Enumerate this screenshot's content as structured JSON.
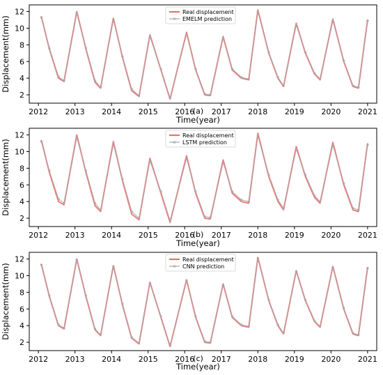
{
  "chart_data": [
    {
      "type": "line",
      "panel_label": "(a)",
      "xlabel": "Time(year)",
      "ylabel": "Displacement(mm)",
      "xlim": [
        2011.75,
        2021.25
      ],
      "ylim": [
        1.0,
        12.8
      ],
      "x_ticks": [
        2012,
        2013,
        2014,
        2015,
        2016,
        2017,
        2018,
        2019,
        2020,
        2021
      ],
      "y_ticks": [
        2,
        4,
        6,
        8,
        10,
        12
      ],
      "legend_position": "top-center",
      "series": [
        {
          "name": "Real displacement",
          "color": "#f26b6b",
          "x": [
            2012.08,
            2012.3,
            2012.55,
            2012.7,
            2013.05,
            2013.3,
            2013.55,
            2013.7,
            2014.05,
            2014.3,
            2014.55,
            2014.75,
            2015.05,
            2015.35,
            2015.6,
            2016.05,
            2016.3,
            2016.55,
            2016.7,
            2017.05,
            2017.3,
            2017.55,
            2017.75,
            2018.0,
            2018.3,
            2018.55,
            2018.7,
            2019.05,
            2019.3,
            2019.55,
            2019.7,
            2020.05,
            2020.35,
            2020.6,
            2020.75,
            2021.0
          ],
          "y": [
            11.4,
            7.5,
            4.0,
            3.6,
            12.0,
            7.5,
            3.5,
            2.8,
            11.2,
            6.5,
            2.5,
            1.8,
            9.2,
            5.0,
            1.5,
            9.5,
            5.0,
            2.0,
            1.9,
            9.0,
            5.0,
            4.0,
            3.8,
            12.2,
            7.0,
            4.0,
            3.0,
            10.6,
            7.0,
            4.5,
            3.8,
            11.1,
            6.0,
            3.0,
            2.8,
            11.0
          ]
        },
        {
          "name": "EMELM prediction",
          "color": "#a8a8a8",
          "x": [
            2012.08,
            2012.3,
            2012.55,
            2012.7,
            2013.05,
            2013.3,
            2013.55,
            2013.7,
            2014.05,
            2014.3,
            2014.55,
            2014.75,
            2015.05,
            2015.35,
            2015.6,
            2016.05,
            2016.3,
            2016.55,
            2016.7,
            2017.05,
            2017.3,
            2017.55,
            2017.75,
            2018.0,
            2018.3,
            2018.55,
            2018.7,
            2019.05,
            2019.3,
            2019.55,
            2019.7,
            2020.05,
            2020.35,
            2020.6,
            2020.75,
            2021.0
          ],
          "y": [
            11.3,
            7.6,
            4.2,
            3.7,
            11.8,
            7.6,
            3.7,
            2.9,
            11.0,
            6.6,
            2.7,
            1.9,
            9.0,
            5.1,
            1.6,
            9.3,
            5.1,
            2.1,
            2.0,
            8.8,
            5.1,
            4.1,
            3.9,
            12.0,
            7.1,
            4.1,
            3.1,
            10.4,
            7.1,
            4.6,
            3.9,
            10.9,
            6.1,
            3.1,
            2.9,
            10.9
          ]
        }
      ]
    },
    {
      "type": "line",
      "panel_label": "(b)",
      "xlabel": "Time(year)",
      "ylabel": "Displacement(mm)",
      "xlim": [
        2011.75,
        2021.25
      ],
      "ylim": [
        1.0,
        12.8
      ],
      "x_ticks": [
        2012,
        2013,
        2014,
        2015,
        2016,
        2017,
        2018,
        2019,
        2020,
        2021
      ],
      "y_ticks": [
        2,
        4,
        6,
        8,
        10,
        12
      ],
      "legend_position": "top-center",
      "series": [
        {
          "name": "Real displacement",
          "color": "#f26b6b",
          "x": [
            2012.08,
            2012.3,
            2012.55,
            2012.7,
            2013.05,
            2013.3,
            2013.55,
            2013.7,
            2014.05,
            2014.3,
            2014.55,
            2014.75,
            2015.05,
            2015.35,
            2015.6,
            2016.05,
            2016.3,
            2016.55,
            2016.7,
            2017.05,
            2017.3,
            2017.55,
            2017.75,
            2018.0,
            2018.3,
            2018.55,
            2018.7,
            2019.05,
            2019.3,
            2019.55,
            2019.7,
            2020.05,
            2020.35,
            2020.6,
            2020.75,
            2021.0
          ],
          "y": [
            11.4,
            7.5,
            4.0,
            3.6,
            12.0,
            7.5,
            3.5,
            2.8,
            11.2,
            6.5,
            2.5,
            1.8,
            9.2,
            5.0,
            1.5,
            9.5,
            5.0,
            2.0,
            1.9,
            9.0,
            5.0,
            4.0,
            3.8,
            12.2,
            7.0,
            4.0,
            3.0,
            10.6,
            7.0,
            4.5,
            3.8,
            11.1,
            6.0,
            3.0,
            2.8,
            11.0
          ]
        },
        {
          "name": "LSTM prediction",
          "color": "#a8a8a8",
          "x": [
            2012.08,
            2012.3,
            2012.55,
            2012.7,
            2013.05,
            2013.3,
            2013.55,
            2013.7,
            2014.05,
            2014.3,
            2014.55,
            2014.75,
            2015.05,
            2015.35,
            2015.6,
            2016.05,
            2016.3,
            2016.55,
            2016.7,
            2017.05,
            2017.3,
            2017.55,
            2017.75,
            2018.0,
            2018.3,
            2018.55,
            2018.7,
            2019.05,
            2019.3,
            2019.55,
            2019.7,
            2020.05,
            2020.35,
            2020.6,
            2020.75,
            2021.0
          ],
          "y": [
            11.2,
            7.7,
            4.3,
            3.8,
            11.7,
            7.7,
            3.8,
            3.0,
            10.9,
            6.7,
            2.8,
            2.0,
            8.9,
            5.2,
            1.7,
            9.2,
            5.2,
            2.2,
            2.1,
            8.7,
            5.2,
            4.2,
            4.0,
            11.9,
            7.2,
            4.2,
            3.2,
            10.3,
            7.2,
            4.7,
            4.0,
            10.8,
            6.2,
            3.2,
            3.0,
            10.8
          ]
        }
      ]
    },
    {
      "type": "line",
      "panel_label": "(c)",
      "xlabel": "Time(year)",
      "ylabel": "Displacement(mm)",
      "xlim": [
        2011.75,
        2021.25
      ],
      "ylim": [
        1.0,
        12.8
      ],
      "x_ticks": [
        2012,
        2013,
        2014,
        2015,
        2016,
        2017,
        2018,
        2019,
        2020,
        2021
      ],
      "y_ticks": [
        2,
        4,
        6,
        8,
        10,
        12
      ],
      "legend_position": "top-center",
      "series": [
        {
          "name": "Real displacement",
          "color": "#f26b6b",
          "x": [
            2012.08,
            2012.3,
            2012.55,
            2012.7,
            2013.05,
            2013.3,
            2013.55,
            2013.7,
            2014.05,
            2014.3,
            2014.55,
            2014.75,
            2015.05,
            2015.35,
            2015.6,
            2016.05,
            2016.3,
            2016.55,
            2016.7,
            2017.05,
            2017.3,
            2017.55,
            2017.75,
            2018.0,
            2018.3,
            2018.55,
            2018.7,
            2019.05,
            2019.3,
            2019.55,
            2019.7,
            2020.05,
            2020.35,
            2020.6,
            2020.75,
            2021.0
          ],
          "y": [
            11.4,
            7.5,
            4.0,
            3.6,
            12.0,
            7.5,
            3.5,
            2.8,
            11.2,
            6.5,
            2.5,
            1.8,
            9.2,
            5.0,
            1.5,
            9.5,
            5.0,
            2.0,
            1.9,
            9.0,
            5.0,
            4.0,
            3.8,
            12.2,
            7.0,
            4.0,
            3.0,
            10.6,
            7.0,
            4.5,
            3.8,
            11.1,
            6.0,
            3.0,
            2.8,
            11.0
          ]
        },
        {
          "name": "CNN prediction",
          "color": "#a8a8a8",
          "x": [
            2012.08,
            2012.3,
            2012.55,
            2012.7,
            2013.05,
            2013.3,
            2013.55,
            2013.7,
            2014.05,
            2014.3,
            2014.55,
            2014.75,
            2015.05,
            2015.35,
            2015.6,
            2016.05,
            2016.3,
            2016.55,
            2016.7,
            2017.05,
            2017.3,
            2017.55,
            2017.75,
            2018.0,
            2018.3,
            2018.55,
            2018.7,
            2019.05,
            2019.3,
            2019.55,
            2019.7,
            2020.05,
            2020.35,
            2020.6,
            2020.75,
            2021.0
          ],
          "y": [
            11.3,
            7.6,
            4.1,
            3.7,
            11.9,
            7.6,
            3.6,
            2.9,
            11.1,
            6.6,
            2.6,
            1.9,
            9.1,
            5.1,
            1.6,
            9.4,
            5.1,
            2.1,
            2.0,
            8.9,
            5.1,
            4.1,
            3.9,
            12.1,
            7.1,
            4.1,
            3.1,
            10.5,
            7.1,
            4.6,
            3.9,
            11.0,
            6.1,
            3.1,
            2.9,
            10.9
          ]
        }
      ]
    }
  ]
}
